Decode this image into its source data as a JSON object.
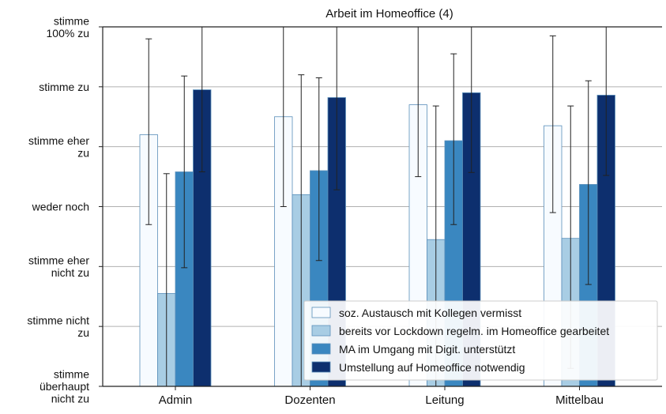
{
  "chart_data": {
    "type": "bar",
    "title": "Arbeit im Homeoffice (4)",
    "xlabel": "",
    "ylabel": "",
    "categories": [
      "Admin",
      "Dozenten",
      "Leitung",
      "Mittelbau"
    ],
    "y_ticks": [
      {
        "value": 1,
        "lines": [
          "stimme",
          "überhaupt",
          "nicht zu"
        ]
      },
      {
        "value": 2,
        "lines": [
          "stimme nicht",
          "zu"
        ]
      },
      {
        "value": 3,
        "lines": [
          "stimme eher",
          "nicht zu"
        ]
      },
      {
        "value": 4,
        "lines": [
          "weder noch"
        ]
      },
      {
        "value": 5,
        "lines": [
          "stimme eher",
          "zu"
        ]
      },
      {
        "value": 6,
        "lines": [
          "stimme zu"
        ]
      },
      {
        "value": 7,
        "lines": [
          "stimme",
          "100% zu"
        ]
      }
    ],
    "ylim": [
      1,
      7.1
    ],
    "grid": "horizontal",
    "legend_position": "bottom-right",
    "series": [
      {
        "name": "soz. Austausch mit Kollegen vermisst",
        "color": "#f7fbff",
        "values": [
          5.2,
          5.5,
          5.7,
          5.35
        ],
        "err_low": [
          3.7,
          4.0,
          4.5,
          3.9
        ],
        "err_high": [
          6.8,
          7.1,
          7.0,
          6.85
        ]
      },
      {
        "name": "bereits vor Lockdown regelm. im Homeoffice gearbeitet",
        "color": "#a8cde4",
        "values": [
          2.55,
          4.2,
          3.45,
          3.47
        ],
        "err_low": [
          1.0,
          1.0,
          1.0,
          1.3
        ],
        "err_high": [
          4.55,
          6.2,
          5.68,
          5.68
        ]
      },
      {
        "name": "MA im Umgang mit Digit. unterstützt",
        "color": "#3a87c0",
        "values": [
          4.58,
          4.6,
          5.1,
          4.37
        ],
        "err_low": [
          2.98,
          3.1,
          3.7,
          2.7
        ],
        "err_high": [
          6.18,
          6.15,
          6.55,
          6.1
        ]
      },
      {
        "name": "Umstellung auf Homeoffice notwendig",
        "color": "#0d2f6e",
        "values": [
          5.95,
          5.82,
          5.9,
          5.86
        ],
        "err_low": [
          4.58,
          4.28,
          4.57,
          4.52
        ],
        "err_high": [
          7.1,
          7.1,
          7.1,
          7.1
        ]
      }
    ]
  }
}
